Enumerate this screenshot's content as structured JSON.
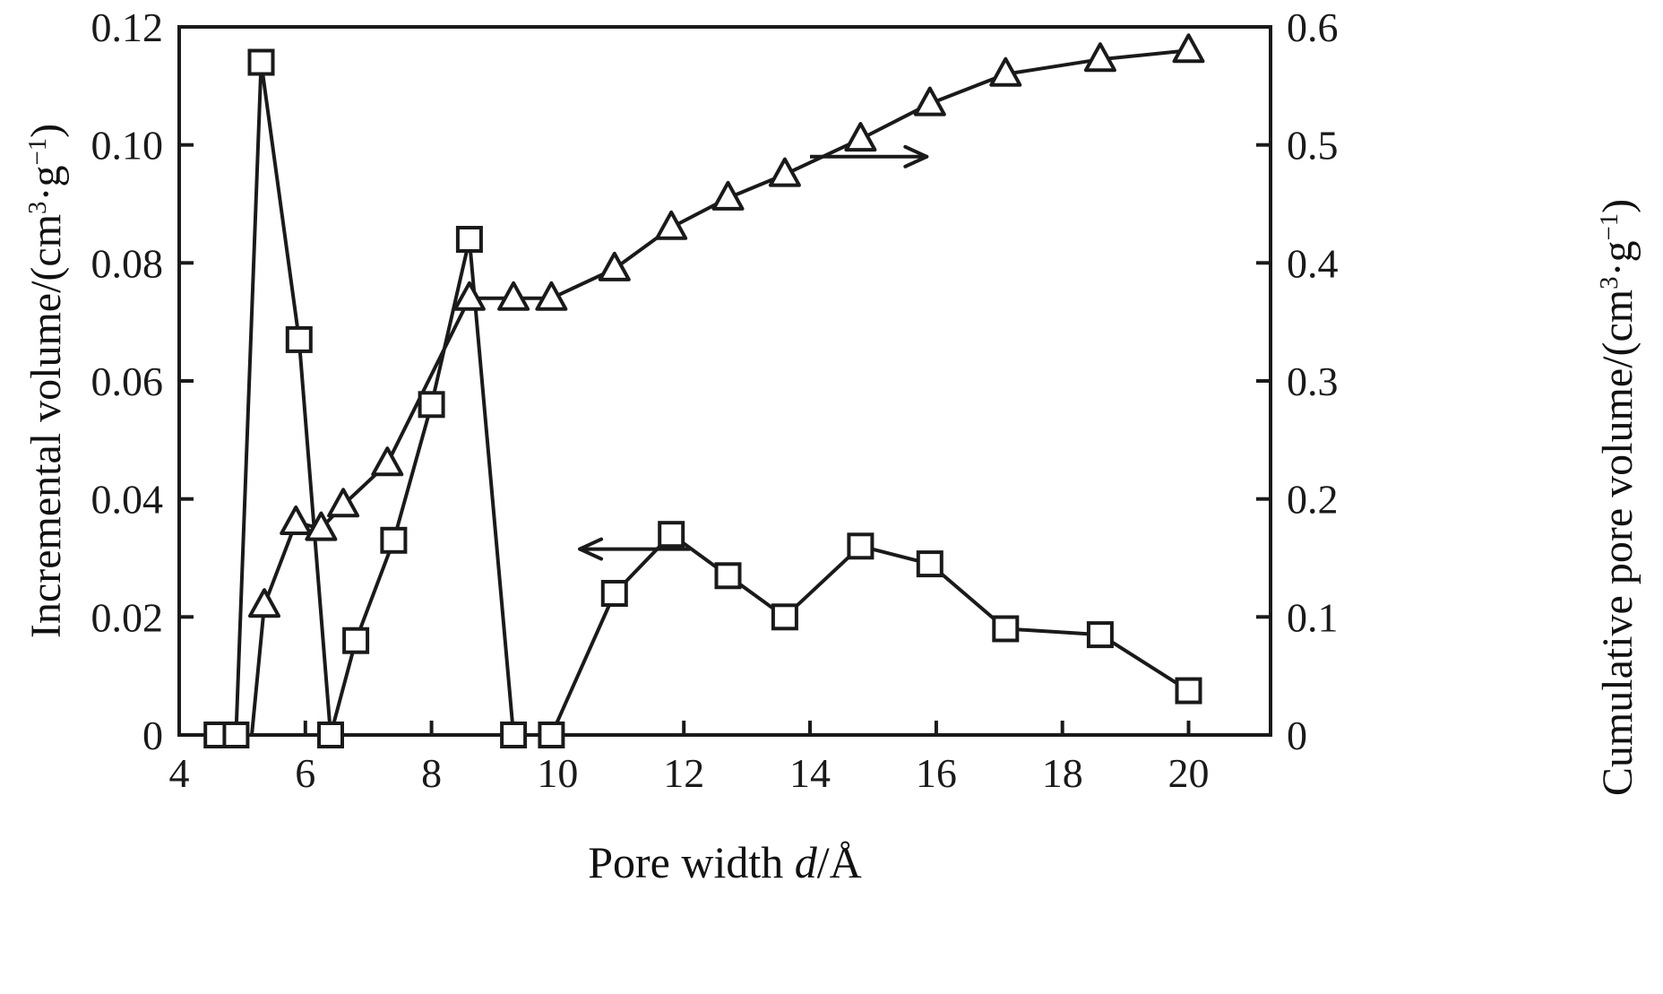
{
  "figure": {
    "xlabel": {
      "prefix": "Pore width ",
      "symbol": "d",
      "suffix": "/Å"
    },
    "ylabel_left": {
      "prefix": "Incremental volume/(cm",
      "sup1": "3",
      "mid": "·g",
      "sup2": "−1",
      "suffix": ")"
    },
    "ylabel_right": {
      "prefix": "Cumulative pore volume/(cm",
      "sup1": "3",
      "mid": "·g",
      "sup2": "−1",
      "suffix": ")"
    }
  },
  "chart_data": {
    "type": "line",
    "title": "",
    "xlabel": "Pore width d/Å",
    "ylabel_left": "Incremental volume/(cm³·g⁻¹)",
    "ylabel_right": "Cumulative pore volume/(cm³·g⁻¹)",
    "xlim": [
      4,
      21.3
    ],
    "ylim_left": [
      0,
      0.12
    ],
    "ylim_right": [
      0,
      0.6
    ],
    "grid": false,
    "legend": "none",
    "line_color": "#1a1a1a",
    "background": "#ffffff",
    "xticks": {
      "values": [
        4,
        6,
        8,
        10,
        12,
        14,
        16,
        18,
        20
      ],
      "labels": [
        "4",
        "6",
        "8",
        "10",
        "12",
        "14",
        "16",
        "18",
        "20"
      ]
    },
    "yticks_left": {
      "values": [
        0,
        0.02,
        0.04,
        0.06,
        0.08,
        0.1,
        0.12
      ],
      "labels": [
        "0",
        "0.02",
        "0.04",
        "0.06",
        "0.08",
        "0.10",
        "0.12"
      ]
    },
    "yticks_right": {
      "values": [
        0,
        0.1,
        0.2,
        0.3,
        0.4,
        0.5,
        0.6
      ],
      "labels": [
        "0",
        "0.1",
        "0.2",
        "0.3",
        "0.4",
        "0.5",
        "0.6"
      ]
    },
    "series": [
      {
        "name": "Incremental volume",
        "axis": "left",
        "marker": "square",
        "x": [
          4.6,
          4.9,
          5.3,
          5.9,
          6.4,
          6.8,
          7.4,
          8.0,
          8.6,
          9.3,
          9.9,
          10.9,
          11.8,
          12.7,
          13.6,
          14.8,
          15.9,
          17.1,
          18.6,
          20.0
        ],
        "y": [
          0,
          0,
          0.114,
          0.067,
          0,
          0.016,
          0.033,
          0.056,
          0.084,
          0,
          0,
          0.024,
          0.034,
          0.027,
          0.02,
          0.032,
          0.029,
          0.018,
          0.017,
          0.0075
        ]
      },
      {
        "name": "Cumulative pore volume",
        "axis": "right",
        "marker": "triangle",
        "line_start": {
          "x": 5.15,
          "y": 0
        },
        "x": [
          5.35,
          5.85,
          6.25,
          6.6,
          7.3,
          8.6,
          9.3,
          9.9,
          10.9,
          11.8,
          12.7,
          13.6,
          14.8,
          15.9,
          17.1,
          18.6,
          20.0
        ],
        "y": [
          0.11,
          0.18,
          0.175,
          0.195,
          0.23,
          0.37,
          0.37,
          0.37,
          0.395,
          0.43,
          0.455,
          0.475,
          0.505,
          0.535,
          0.56,
          0.5725,
          0.58
        ]
      }
    ],
    "annotations": [
      {
        "type": "arrow",
        "meaning": "points-to-left-axis-series",
        "axis": "left",
        "y": 0.0315,
        "x_tail": 12.1,
        "x_head": 10.35
      },
      {
        "type": "arrow",
        "meaning": "points-to-right-axis-series",
        "axis": "right",
        "y": 0.49,
        "x_tail": 14.0,
        "x_head": 15.85
      }
    ]
  }
}
